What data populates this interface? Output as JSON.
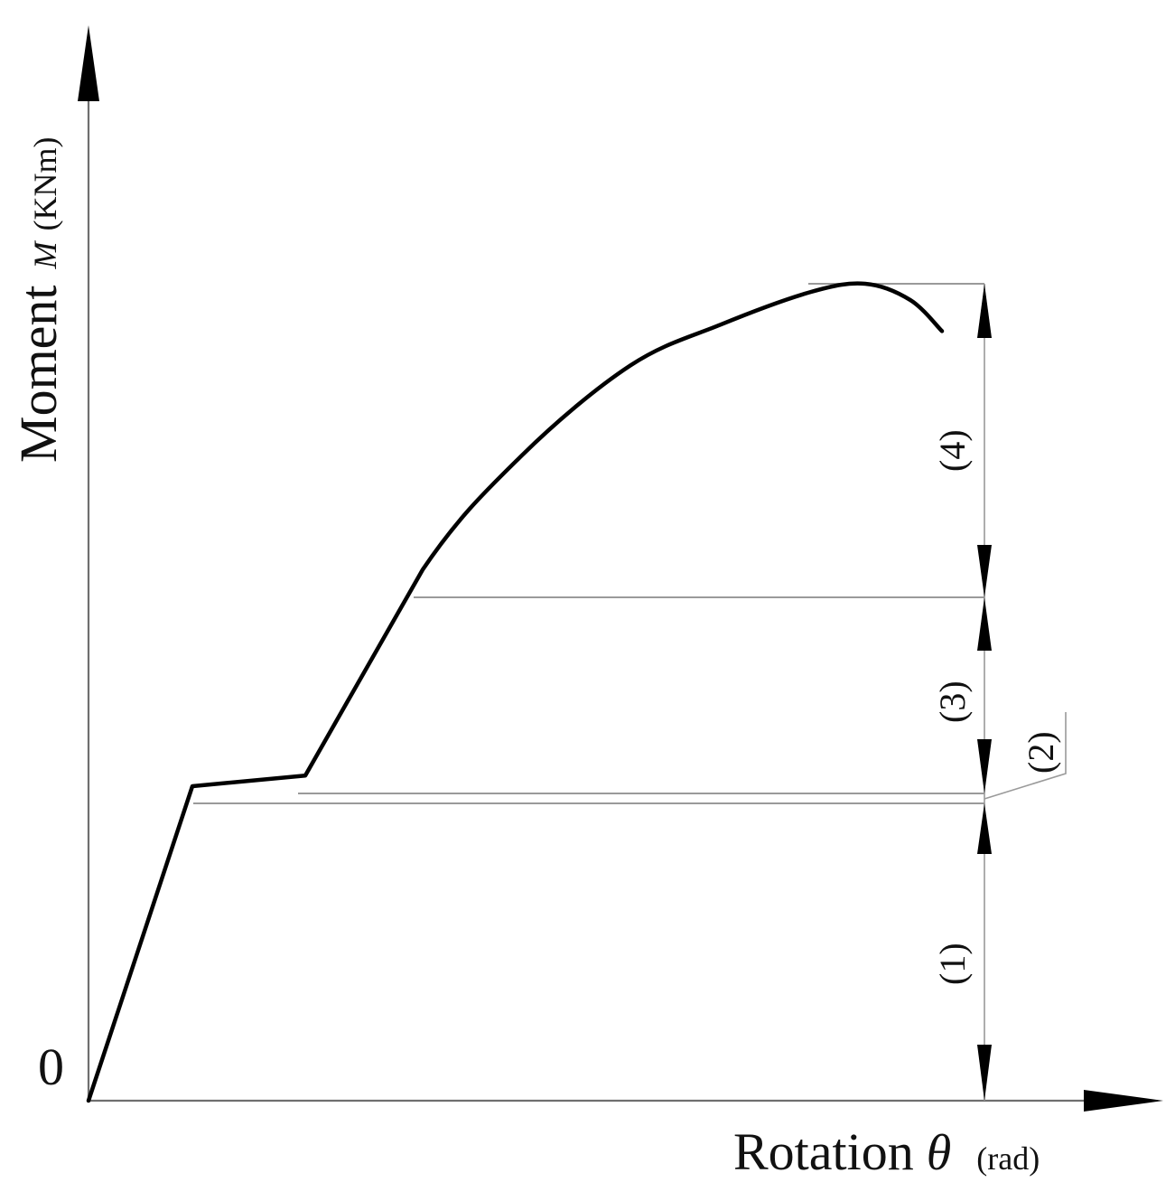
{
  "chart_data": {
    "type": "line",
    "description_free": true,
    "x_axis": {
      "label": "Rotation",
      "symbol": "θ",
      "unit": "(rad)"
    },
    "y_axis": {
      "label": "Moment",
      "symbol": "M",
      "unit": "(KNm)"
    },
    "origin_label": "0",
    "stages": [
      {
        "label": "(1)"
      },
      {
        "label": "(2)"
      },
      {
        "label": "(3)"
      },
      {
        "label": "(4)"
      }
    ],
    "series": [
      {
        "values_note": "",
        "points": [
          [
            0.0,
            0.0
          ],
          [
            0.115,
            0.385
          ],
          [
            0.24,
            0.398
          ],
          [
            0.37,
            0.65
          ],
          [
            0.48,
            0.79
          ],
          [
            0.6,
            0.9
          ],
          [
            0.7,
            0.95
          ],
          [
            0.8,
            0.99
          ],
          [
            0.86,
            1.0
          ],
          [
            0.91,
            0.98
          ],
          [
            0.945,
            0.942
          ]
        ]
      }
    ]
  }
}
